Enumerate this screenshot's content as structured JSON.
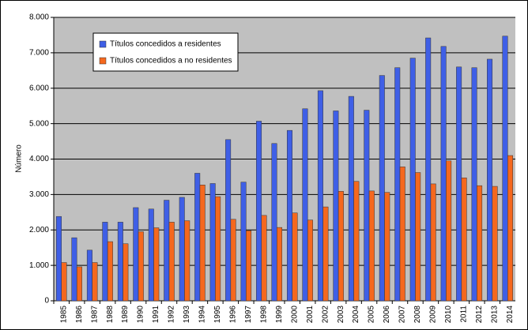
{
  "chart_data": {
    "type": "bar",
    "ylabel": "Número",
    "categories": [
      "1985",
      "1986",
      "1987",
      "1988",
      "1989",
      "1990",
      "1991",
      "1992",
      "1993",
      "1994",
      "1995",
      "1996",
      "1997",
      "1998",
      "1999",
      "2000",
      "2001",
      "2002",
      "2003",
      "2004",
      "2005",
      "2006",
      "2007",
      "2008",
      "2009",
      "2010",
      "2011",
      "2012",
      "2013",
      "2014"
    ],
    "series": [
      {
        "name": "Títulos concedidos a residentes",
        "color": "#3f5fe6",
        "values": [
          2380,
          1780,
          1430,
          2220,
          2220,
          2630,
          2590,
          2840,
          2920,
          3600,
          3310,
          4550,
          3350,
          5070,
          4440,
          4810,
          5420,
          5930,
          5360,
          5770,
          5380,
          6360,
          6580,
          6850,
          7420,
          7180,
          6600,
          6580,
          6820,
          7470
        ]
      },
      {
        "name": "Títulos concedidos a no residentes",
        "color": "#f5681e",
        "values": [
          1080,
          960,
          1080,
          1670,
          1610,
          1950,
          2060,
          2220,
          2260,
          3270,
          2940,
          2300,
          1980,
          2410,
          2070,
          2480,
          2280,
          2650,
          3090,
          3370,
          3100,
          3060,
          3780,
          3620,
          3300,
          3950,
          3470,
          3250,
          3230,
          4100
        ]
      }
    ],
    "ylim": [
      0,
      8000
    ],
    "yticks": [
      0,
      {
        "value": 1000,
        "label": "1.000"
      },
      {
        "value": 2000,
        "label": "2.000"
      },
      {
        "value": 3000,
        "label": "3.000"
      },
      {
        "value": 4000,
        "label": "4.000"
      },
      {
        "value": 5000,
        "label": "5.000"
      },
      {
        "value": 6000,
        "label": "6.000"
      },
      {
        "value": 7000,
        "label": "7.000"
      },
      {
        "value": 8000,
        "label": "8.000"
      }
    ],
    "grid": true,
    "legend": "upper left"
  }
}
